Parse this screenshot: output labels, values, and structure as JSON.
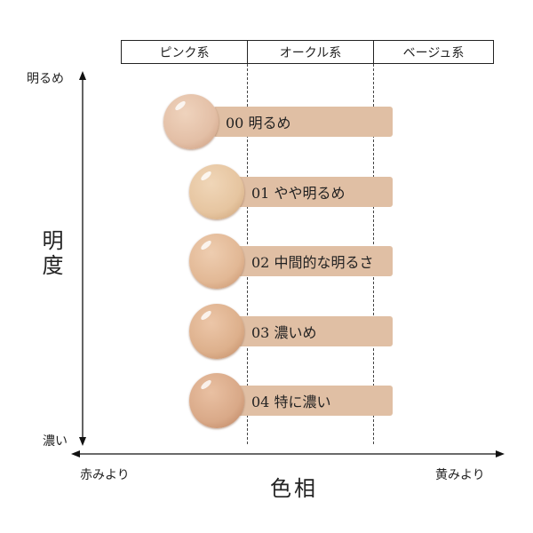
{
  "header": [
    "ピンク系",
    "オークル系",
    "ベージュ系"
  ],
  "y_axis": {
    "label": "明度",
    "top": "明るめ",
    "bottom": "濃い"
  },
  "x_axis": {
    "label": "色相",
    "left": "赤みより",
    "right": "黄みより"
  },
  "shades": [
    {
      "label": "00 明るめ",
      "color": "#e3bfa6"
    },
    {
      "label": "01 やや明るめ",
      "color": "#e6c5a0"
    },
    {
      "label": "02 中間的な明るさ",
      "color": "#e2b895"
    },
    {
      "label": "03 濃いめ",
      "color": "#ddb08c"
    },
    {
      "label": "04 特に濃い",
      "color": "#d9a988"
    }
  ]
}
